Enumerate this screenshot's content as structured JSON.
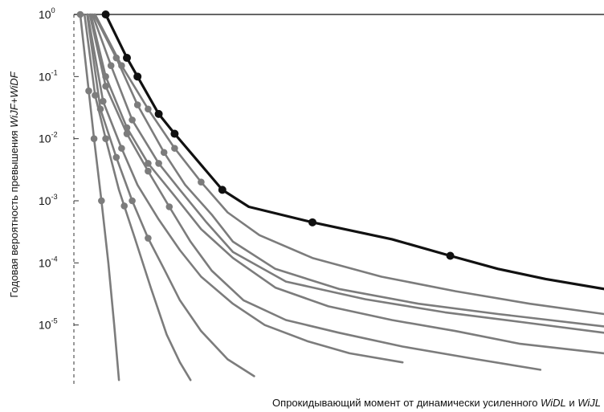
{
  "chart_data": {
    "type": "line",
    "xlabel_parts": [
      {
        "text": "Опрокидывающий момент от динамически усиленного ",
        "italic": false
      },
      {
        "text": "WiDL",
        "italic": true
      },
      {
        "text": " и ",
        "italic": false
      },
      {
        "text": "WiJL",
        "italic": true
      }
    ],
    "ylabel_parts": [
      {
        "text": "Годовая вероятность превышения ",
        "italic": false
      },
      {
        "text": "WiJF+WiDF",
        "italic": true
      }
    ],
    "y_scale": "log",
    "ylim": [
      1e-06,
      1
    ],
    "y_ticks": [
      {
        "base": "10",
        "exp": "0",
        "value": 1
      },
      {
        "base": "10",
        "exp": "-1",
        "value": 0.1
      },
      {
        "base": "10",
        "exp": "-2",
        "value": 0.01
      },
      {
        "base": "10",
        "exp": "-3",
        "value": 0.001
      },
      {
        "base": "10",
        "exp": "-4",
        "value": 0.0001
      },
      {
        "base": "10",
        "exp": "-5",
        "value": 1e-05
      }
    ],
    "xlim": [
      0,
      100
    ],
    "x_ticks": [],
    "grid": false,
    "colors": {
      "highlight": "#111111",
      "series": "#7c7c7c"
    },
    "series": [
      {
        "style": "highlight",
        "x": [
          6,
          10,
          12,
          16,
          19,
          28,
          33,
          45,
          60,
          71,
          80,
          89,
          100
        ],
        "y": [
          1,
          0.2,
          0.1,
          0.025,
          0.012,
          0.0015,
          0.0008,
          0.00045,
          0.00024,
          0.00013,
          8e-05,
          5.5e-05,
          3.8e-05
        ],
        "markers": [
          6,
          10,
          12,
          16,
          19,
          28,
          45,
          71
        ]
      },
      {
        "style": "normal",
        "x": [
          1.2,
          2.5,
          3.8,
          5.2,
          6.5,
          7.6,
          8.5
        ],
        "y": [
          1,
          0.1,
          0.01,
          0.001,
          0.0001,
          1e-05,
          1.3e-06
        ],
        "markers": [
          1.2,
          2.8,
          3.8,
          5.2
        ]
      },
      {
        "style": "normal",
        "x": [
          2,
          4,
          6,
          8.5,
          11.5,
          14.5,
          17.5,
          20,
          22
        ],
        "y": [
          1,
          0.05,
          0.01,
          0.0015,
          0.00025,
          4e-05,
          7e-06,
          2.5e-06,
          1.3e-06
        ],
        "markers": [
          4,
          6,
          9.5
        ]
      },
      {
        "style": "normal",
        "x": [
          2.5,
          5,
          8,
          11,
          14,
          17,
          20,
          24,
          29,
          34
        ],
        "y": [
          1,
          0.03,
          0.005,
          0.001,
          0.00025,
          8e-05,
          2.5e-05,
          8e-06,
          2.8e-06,
          1.5e-06
        ],
        "markers": [
          5,
          8,
          11,
          14
        ]
      },
      {
        "style": "normal",
        "x": [
          2.6,
          5.5,
          9,
          12,
          16,
          20,
          24,
          30,
          36,
          44,
          52,
          62
        ],
        "y": [
          1,
          0.04,
          0.007,
          0.0018,
          0.0005,
          0.00016,
          6e-05,
          2.2e-05,
          1e-05,
          5.5e-06,
          3.5e-06,
          2.5e-06
        ],
        "markers": [
          5.5,
          9
        ]
      },
      {
        "style": "normal",
        "x": [
          3,
          6,
          10,
          14,
          18,
          22,
          26,
          32,
          40,
          50,
          62,
          76,
          88
        ],
        "y": [
          1,
          0.07,
          0.012,
          0.003,
          0.0008,
          0.00022,
          7.5e-05,
          2.5e-05,
          1.2e-05,
          7.5e-06,
          4.5e-06,
          2.8e-06,
          1.9e-06
        ],
        "markers": [
          6,
          10,
          14,
          18
        ]
      },
      {
        "style": "normal",
        "x": [
          3.2,
          6,
          10,
          14,
          19,
          24,
          30,
          38,
          48,
          60,
          72,
          84,
          100
        ],
        "y": [
          1,
          0.1,
          0.015,
          0.004,
          0.0012,
          0.00035,
          0.00012,
          4e-05,
          2e-05,
          1.2e-05,
          8e-06,
          5e-06,
          3.5e-06
        ],
        "markers": [
          6,
          10,
          14
        ]
      },
      {
        "style": "normal",
        "x": [
          3.5,
          7,
          11,
          16,
          20,
          25,
          30,
          40,
          55,
          70,
          85,
          100
        ],
        "y": [
          1,
          0.15,
          0.02,
          0.004,
          0.0015,
          0.00045,
          0.00015,
          5e-05,
          2.6e-05,
          1.6e-05,
          1.1e-05,
          7.5e-06
        ],
        "markers": [
          7,
          11,
          16
        ]
      },
      {
        "style": "normal",
        "x": [
          3.8,
          8,
          12,
          17,
          21,
          26,
          30,
          38,
          50,
          65,
          80,
          100
        ],
        "y": [
          1,
          0.2,
          0.035,
          0.006,
          0.0018,
          0.0006,
          0.00022,
          8e-05,
          3.8e-05,
          2.2e-05,
          1.5e-05,
          9.5e-06
        ],
        "markers": [
          8,
          12,
          17
        ]
      },
      {
        "style": "normal",
        "x": [
          4,
          9,
          14,
          19,
          24,
          29,
          35,
          45,
          58,
          72,
          86,
          100
        ],
        "y": [
          1,
          0.15,
          0.03,
          0.007,
          0.002,
          0.00065,
          0.00028,
          0.00012,
          6e-05,
          3.5e-05,
          2.2e-05,
          1.5e-05
        ],
        "markers": [
          9,
          14,
          19,
          24
        ]
      }
    ]
  }
}
